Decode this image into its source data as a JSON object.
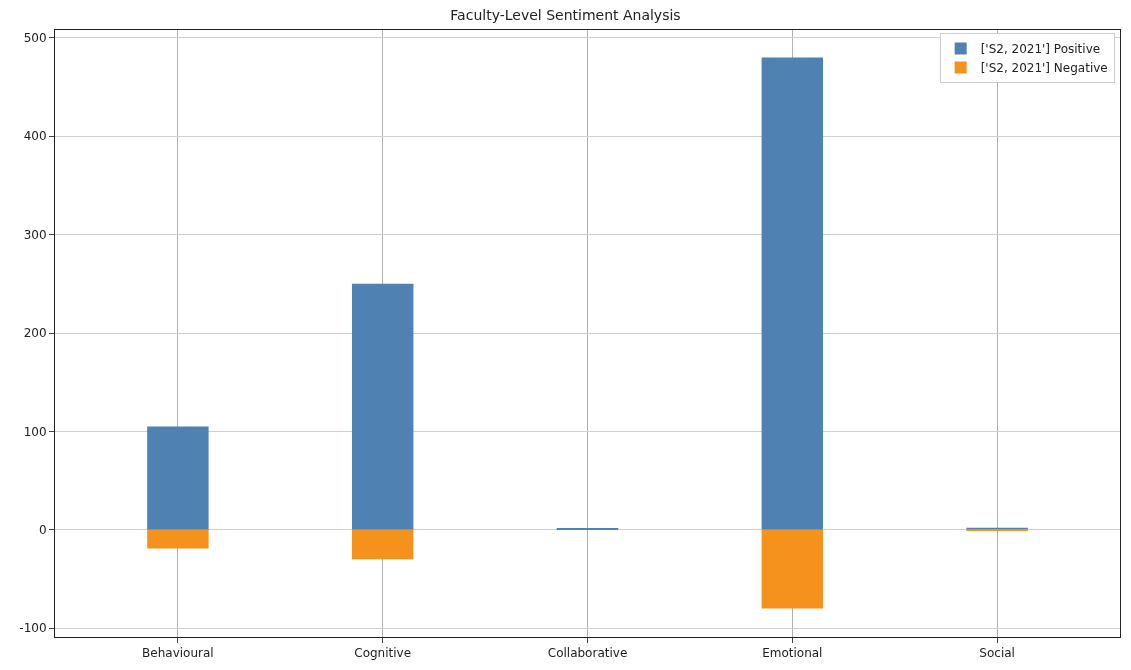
{
  "chart_data": {
    "type": "bar",
    "title": "Faculty-Level Sentiment Analysis",
    "categories": [
      "Behavioural",
      "Cognitive",
      "Collaborative",
      "Emotional",
      "Social"
    ],
    "series": [
      {
        "name": "['S2, 2021'] Positive",
        "color": "#4f81b3",
        "values": [
          105,
          250,
          1,
          480,
          2
        ]
      },
      {
        "name": "['S2, 2021'] Negative",
        "color": "#f5921e",
        "values": [
          -19,
          -30,
          0,
          -80,
          -1
        ]
      }
    ],
    "ylim": [
      -109,
      508
    ],
    "yticks": [
      -100,
      0,
      100,
      200,
      300,
      400,
      500
    ],
    "stacked": true,
    "grid": true,
    "legend": "top right"
  }
}
